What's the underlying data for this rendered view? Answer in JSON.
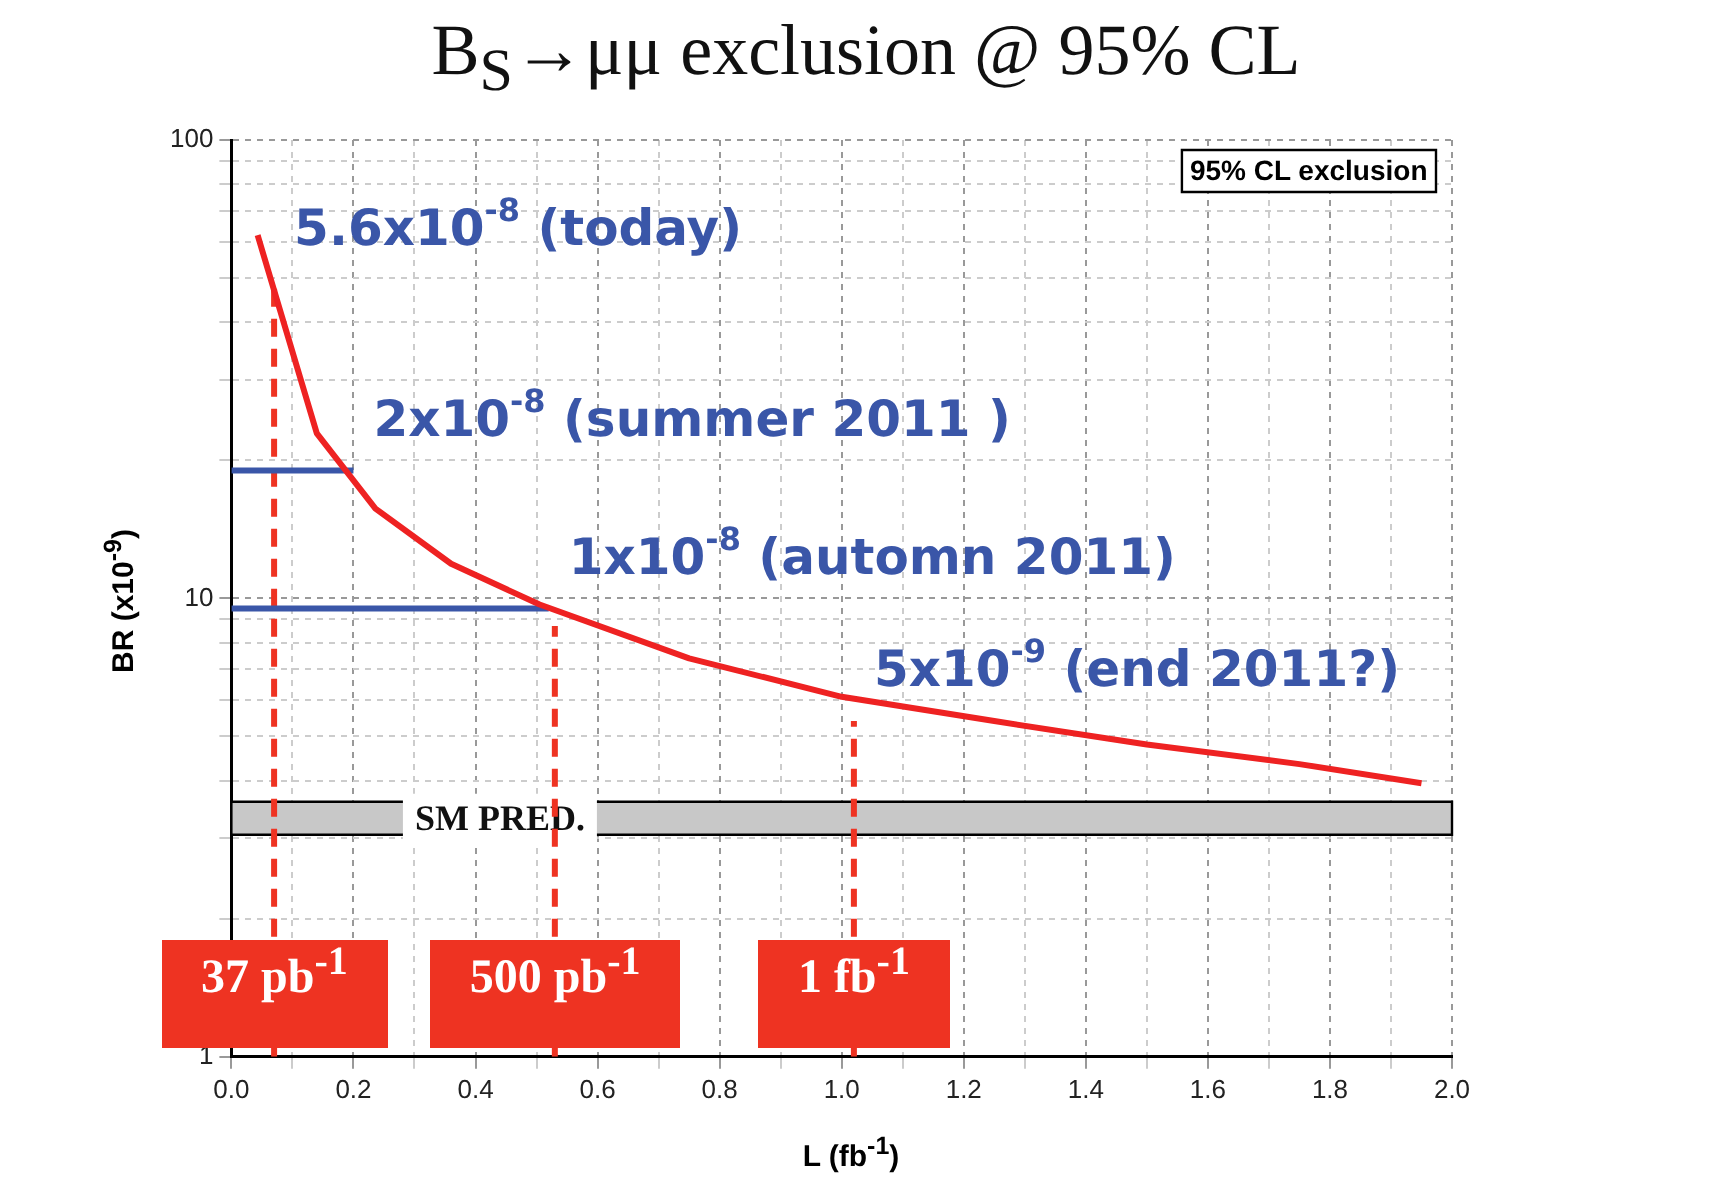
{
  "chart_data": {
    "type": "line",
    "title": "B$_{S}$→μμ exclusion @ 95% CL",
    "xlabel": "L (fb$^{-1}$)",
    "ylabel": "BR (x10$^{-9}$)",
    "xlim": [
      0,
      2
    ],
    "xticks": [
      {
        "value": 0,
        "label": "0.0"
      },
      {
        "value": 0.1,
        "label": null
      },
      0.2,
      {
        "value": 0.3,
        "label": null
      },
      0.4,
      {
        "value": 0.5,
        "label": null
      },
      0.6,
      {
        "value": 0.7,
        "label": null
      },
      0.8,
      {
        "value": 0.9,
        "label": null
      },
      {
        "value": 1,
        "label": "1.0"
      },
      {
        "value": 1.1,
        "label": null
      },
      1.2,
      {
        "value": 1.3,
        "label": null
      },
      1.4,
      {
        "value": 1.5,
        "label": null
      },
      1.6,
      {
        "value": 1.7,
        "label": null
      },
      1.8,
      {
        "value": 1.9,
        "label": null
      },
      {
        "value": 2,
        "label": "2.0"
      }
    ],
    "ylim": [
      1,
      100
    ],
    "yticks": [
      1,
      {
        "value": 2,
        "label": null
      },
      {
        "value": 3,
        "label": null
      },
      {
        "value": 4,
        "label": null
      },
      {
        "value": 5,
        "label": null
      },
      {
        "value": 6,
        "label": null
      },
      {
        "value": 7,
        "label": null
      },
      {
        "value": 8,
        "label": null
      },
      {
        "value": 9,
        "label": null
      },
      10,
      {
        "value": 20,
        "label": null
      },
      {
        "value": 30,
        "label": null
      },
      {
        "value": 40,
        "label": null
      },
      {
        "value": 50,
        "label": null
      },
      {
        "value": 60,
        "label": null
      },
      {
        "value": 70,
        "label": null
      },
      {
        "value": 80,
        "label": null
      },
      {
        "value": 90,
        "label": null
      },
      100
    ],
    "log": "y",
    "grid": true,
    "legend": "bottom",
    "marker": "none",
    "series": [
      {
        "color": "#ee2222",
        "x": [
          0.043,
          0.14,
          0.236,
          0.36,
          0.505,
          0.75,
          1.0,
          1.25,
          1.5,
          1.75,
          1.95
        ],
        "values": [
          62,
          22.9,
          15.7,
          11.9,
          9.7,
          7.4,
          6.1,
          5.4,
          4.8,
          4.35,
          3.95
        ]
      },
      {
        "color": "#3a56a8",
        "x": [
          0,
          0.2
        ],
        "values": [
          19,
          19
        ]
      },
      {
        "color": "#3a56a8",
        "x": [
          0,
          0.52
        ],
        "values": [
          9.5,
          9.5
        ]
      },
      {
        "name": "37 pb$^{-1}$",
        "color": "#ee3322",
        "line_style": "dashed",
        "x": [
          0.07,
          0.07
        ],
        "values": [
          1,
          49.5
        ]
      },
      {
        "name": "500 pb$^{-1}$",
        "color": "#ee3322",
        "line_style": "dashed",
        "x": [
          0.53,
          0.53
        ],
        "values": [
          1,
          8.7
        ]
      },
      {
        "name": "1 fb$^{-1}$",
        "color": "#ee3322",
        "line_style": "dashed",
        "x": [
          1.02,
          1.02
        ],
        "values": [
          1,
          5.4
        ]
      }
    ],
    "bands": [
      {
        "axis": "y",
        "from": 3.05,
        "to": 3.6,
        "label": "SM PRED.",
        "color": "#c8c8c8"
      }
    ],
    "annotations": [
      "95% CL exclusion",
      {
        "text": "5.6x10$^{-8}$ (today)",
        "x": 0.07,
        "y": 49.5
      },
      {
        "text": "2x10$^{-8}$ (summer 2011 )",
        "x": 0.2,
        "y": 19
      },
      {
        "text": "1x10$^{-8}$ (automn 2011)",
        "x": 0.52,
        "y": 9.5
      },
      {
        "text": "5x10$^{-9}$ (end 2011?)",
        "x": 1.02,
        "y": 5.4
      }
    ]
  }
}
